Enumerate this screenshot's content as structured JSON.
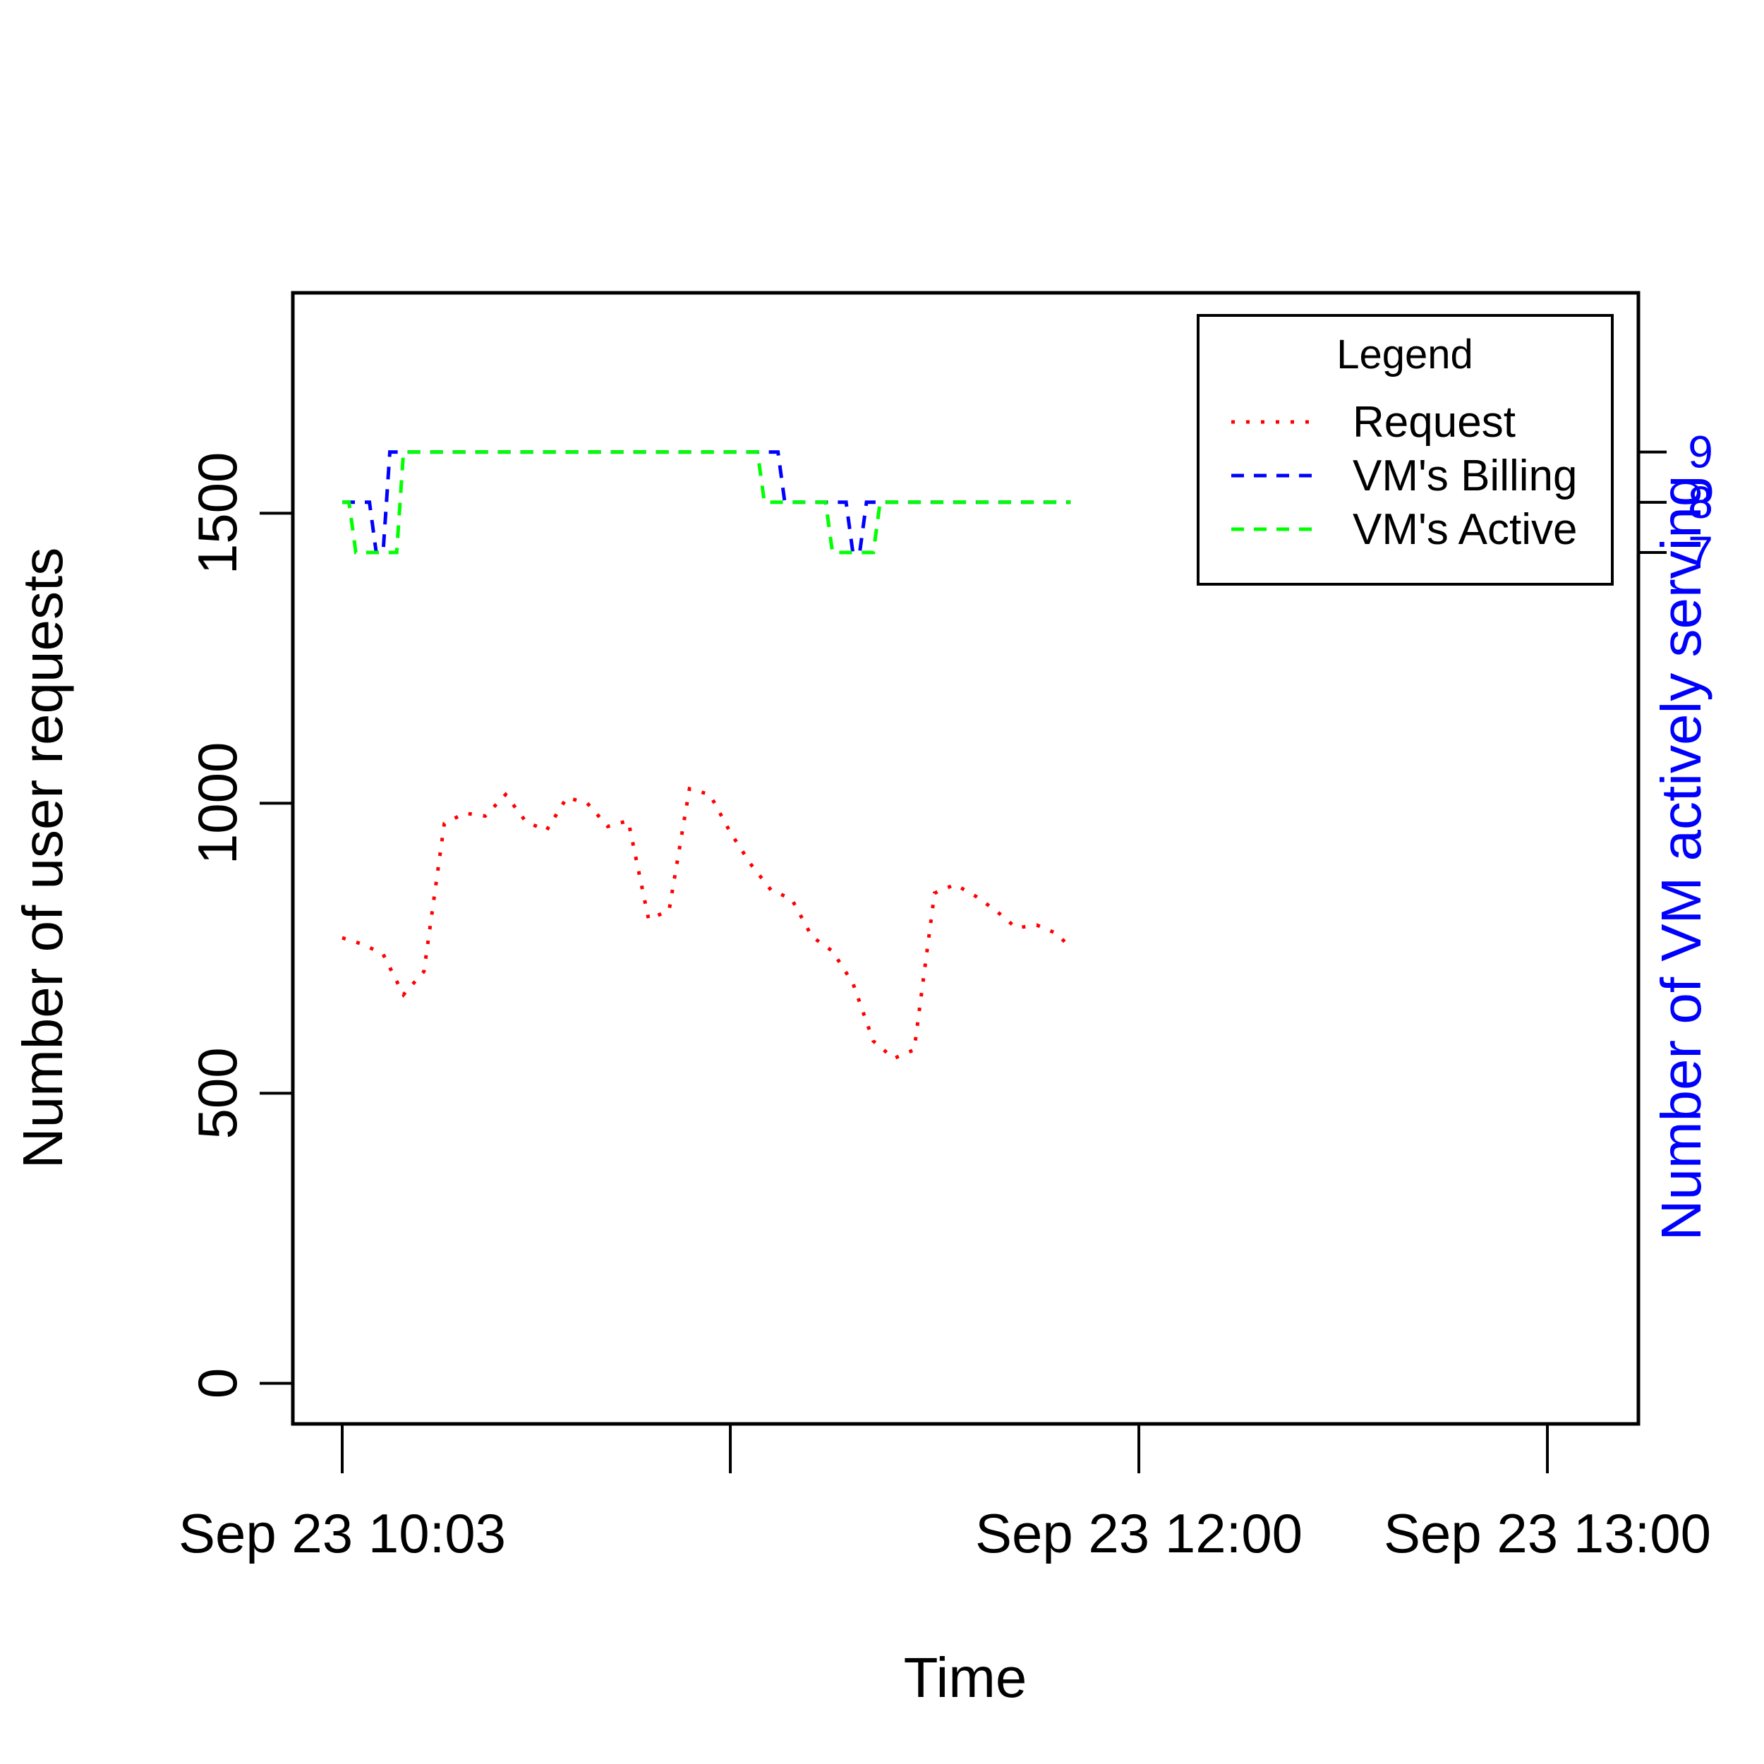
{
  "chart_data": {
    "type": "line",
    "title": "",
    "xlabel": "Time",
    "ylabel": "Number of user requests",
    "y2label": "Number of VM actively serving",
    "x_start": "Sep 23 10:03",
    "x_ticks": [
      {
        "t": "Sep 23 10:03",
        "label": "Sep 23 10:03"
      },
      {
        "t": "Sep 23 11:00",
        "label": ""
      },
      {
        "t": "Sep 23 12:00",
        "label": "Sep 23 12:00"
      },
      {
        "t": "Sep 23 13:00",
        "label": "Sep 23 13:00"
      }
    ],
    "ylim": [
      -70,
      1880
    ],
    "yticks": [
      0,
      500,
      1000,
      1500
    ],
    "y2lim": [
      -10.35,
      12.17
    ],
    "y2ticks": [
      7,
      8,
      9
    ],
    "grid": false,
    "legend": {
      "title": "Legend",
      "position": "top-right",
      "entries": [
        "Request",
        "VM's Billing",
        "VM's Active"
      ]
    },
    "series": [
      {
        "name": "Request",
        "axis": "left",
        "color": "#ff0000",
        "dash": "dotted",
        "points": [
          [
            "Sep 23 10:03",
            768
          ],
          [
            "Sep 23 10:06",
            757
          ],
          [
            "Sep 23 10:09",
            740
          ],
          [
            "Sep 23 10:12",
            670
          ],
          [
            "Sep 23 10:15",
            710
          ],
          [
            "Sep 23 10:18",
            965
          ],
          [
            "Sep 23 10:21",
            983
          ],
          [
            "Sep 23 10:24",
            978
          ],
          [
            "Sep 23 10:27",
            1015
          ],
          [
            "Sep 23 10:30",
            968
          ],
          [
            "Sep 23 10:33",
            953
          ],
          [
            "Sep 23 10:36",
            1010
          ],
          [
            "Sep 23 10:39",
            1000
          ],
          [
            "Sep 23 10:42",
            960
          ],
          [
            "Sep 23 10:45",
            970
          ],
          [
            "Sep 23 10:48",
            800
          ],
          [
            "Sep 23 10:51",
            815
          ],
          [
            "Sep 23 10:54",
            1025
          ],
          [
            "Sep 23 10:57",
            1015
          ],
          [
            "Sep 23 11:00",
            950
          ],
          [
            "Sep 23 11:03",
            895
          ],
          [
            "Sep 23 11:06",
            850
          ],
          [
            "Sep 23 11:09",
            835
          ],
          [
            "Sep 23 11:12",
            770
          ],
          [
            "Sep 23 11:15",
            745
          ],
          [
            "Sep 23 11:18",
            690
          ],
          [
            "Sep 23 11:21",
            590
          ],
          [
            "Sep 23 11:24",
            560
          ],
          [
            "Sep 23 11:27",
            575
          ],
          [
            "Sep 23 11:30",
            845
          ],
          [
            "Sep 23 11:33",
            860
          ],
          [
            "Sep 23 11:36",
            840
          ],
          [
            "Sep 23 11:39",
            815
          ],
          [
            "Sep 23 11:42",
            785
          ],
          [
            "Sep 23 11:45",
            790
          ],
          [
            "Sep 23 11:48",
            775
          ],
          [
            "Sep 23 11:50",
            750
          ]
        ]
      },
      {
        "name": "VM's Billing",
        "axis": "right",
        "color": "#0000ff",
        "dash": "dashed",
        "points": [
          [
            "Sep 23 10:03",
            8
          ],
          [
            "Sep 23 10:07",
            8
          ],
          [
            "Sep 23 10:08",
            7
          ],
          [
            "Sep 23 10:09",
            7
          ],
          [
            "Sep 23 10:10",
            9
          ],
          [
            "Sep 23 11:07",
            9
          ],
          [
            "Sep 23 11:08",
            8
          ],
          [
            "Sep 23 11:17",
            8
          ],
          [
            "Sep 23 11:18",
            7
          ],
          [
            "Sep 23 11:19",
            7
          ],
          [
            "Sep 23 11:20",
            8
          ],
          [
            "Sep 23 11:50",
            8
          ]
        ]
      },
      {
        "name": "VM's Active",
        "axis": "right",
        "color": "#00ff00",
        "dash": "dashed",
        "points": [
          [
            "Sep 23 10:03",
            8
          ],
          [
            "Sep 23 10:04",
            8
          ],
          [
            "Sep 23 10:05",
            7
          ],
          [
            "Sep 23 10:11",
            7
          ],
          [
            "Sep 23 10:12",
            9
          ],
          [
            "Sep 23 11:04",
            9
          ],
          [
            "Sep 23 11:05",
            8
          ],
          [
            "Sep 23 11:14",
            8
          ],
          [
            "Sep 23 11:15",
            7
          ],
          [
            "Sep 23 11:21",
            7
          ],
          [
            "Sep 23 11:22",
            8
          ],
          [
            "Sep 23 11:50",
            8
          ]
        ]
      }
    ]
  }
}
